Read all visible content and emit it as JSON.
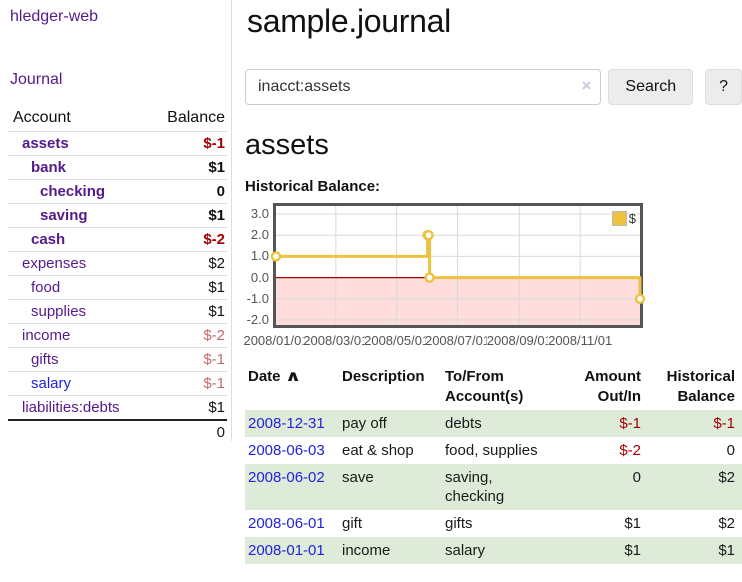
{
  "colors": {
    "link_purple": "#551a8b",
    "link_blue": "#2222dd",
    "neg_strong": "#a40000",
    "neg_soft": "#c46a6a",
    "row_stripe_green": "#deebd8",
    "chart_line": "#edc240",
    "chart_negative_fill": "#ffdddd",
    "chart_zero_line": "#a40000",
    "chart_border": "#545454",
    "chart_grid": "#d9d9d9"
  },
  "app": {
    "title": "hledger-web",
    "nav": {
      "journal": "Journal"
    }
  },
  "sidebar": {
    "header": {
      "account": "Account",
      "balance": "Balance"
    },
    "accounts": [
      {
        "name": "assets",
        "balance": "$-1"
      },
      {
        "name": "bank",
        "balance": "$1"
      },
      {
        "name": "checking",
        "balance": "0"
      },
      {
        "name": "saving",
        "balance": "$1"
      },
      {
        "name": "cash",
        "balance": "$-2"
      },
      {
        "name": "expenses",
        "balance": "$2"
      },
      {
        "name": "food",
        "balance": "$1"
      },
      {
        "name": "supplies",
        "balance": "$1"
      },
      {
        "name": "income",
        "balance": "$-2"
      },
      {
        "name": "gifts",
        "balance": "$-1"
      },
      {
        "name": "salary",
        "balance": "$-1"
      },
      {
        "name": "liabilities:debts",
        "balance": "$1"
      }
    ],
    "total": "0"
  },
  "main": {
    "title": "sample.journal",
    "search": {
      "value": "inacct:assets",
      "clear_icon": "×",
      "button_label": "Search",
      "help_label": "?"
    },
    "account_heading": "assets",
    "section_label": "Historical Balance:"
  },
  "chart_data": {
    "type": "line",
    "title": "Historical Balance:",
    "step": true,
    "legend_position": "top-right",
    "grid": true,
    "series": [
      {
        "name": "$",
        "points": [
          {
            "date": "2008-01-01",
            "day": 0,
            "value": 1
          },
          {
            "date": "2008-06-01",
            "day": 152,
            "value": 2
          },
          {
            "date": "2008-06-02",
            "day": 153,
            "value": 2
          },
          {
            "date": "2008-06-03",
            "day": 154,
            "value": 0
          },
          {
            "date": "2008-12-31",
            "day": 365,
            "value": -1
          }
        ]
      }
    ],
    "x_ticks": [
      "2008/01/01",
      "2008/03/01",
      "2008/05/01",
      "2008/07/01",
      "2008/09/01",
      "2008/11/01"
    ],
    "x_tick_days": [
      0,
      60,
      121,
      182,
      244,
      305
    ],
    "x_range_days": [
      0,
      365
    ],
    "y_ticks": [
      3.0,
      2.0,
      1.0,
      0.0,
      -1.0,
      -2.0
    ],
    "ylim": [
      -2.2,
      3.35
    ]
  },
  "register": {
    "columns": {
      "date": "Date",
      "sort_icon": "∧",
      "description": "Description",
      "accounts": "To/From Account(s)",
      "amount": "Amount Out/In",
      "balance": "Historical Balance"
    },
    "rows": [
      {
        "date": "2008-12-31",
        "description": "pay off",
        "accounts": "debts",
        "amount": "$-1",
        "balance": "$-1"
      },
      {
        "date": "2008-06-03",
        "description": "eat & shop",
        "accounts": "food, supplies",
        "amount": "$-2",
        "balance": "0"
      },
      {
        "date": "2008-06-02",
        "description": "save",
        "accounts": "saving, checking",
        "amount": "0",
        "balance": "$2"
      },
      {
        "date": "2008-06-01",
        "description": "gift",
        "accounts": "gifts",
        "amount": "$1",
        "balance": "$2"
      },
      {
        "date": "2008-01-01",
        "description": "income",
        "accounts": "salary",
        "amount": "$1",
        "balance": "$1"
      }
    ]
  }
}
